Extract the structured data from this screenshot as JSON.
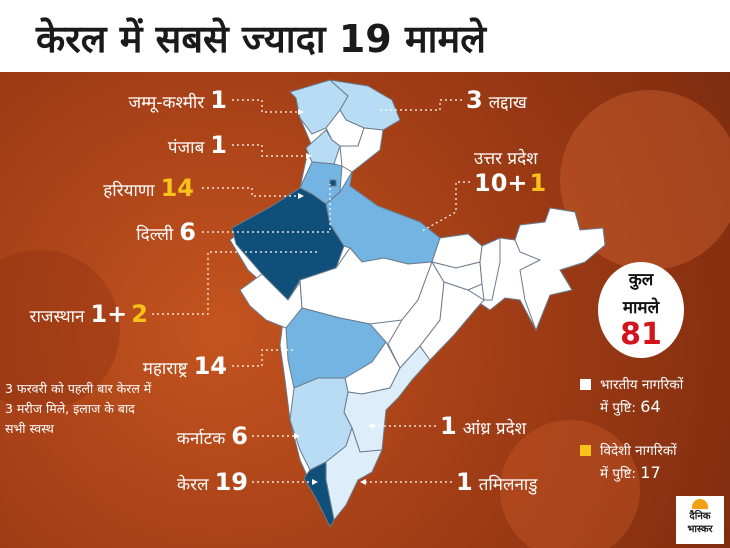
{
  "title": "केरल में सबसे ज्यादा 19 मामले",
  "states": [
    {
      "key": "jammu",
      "name": "जम्मू-कश्मीर",
      "value": "1"
    },
    {
      "key": "punjab",
      "name": "पंजाब",
      "value": "1"
    },
    {
      "key": "haryana",
      "name": "हरियाणा",
      "value": "14"
    },
    {
      "key": "delhi",
      "name": "दिल्ली",
      "value": "6"
    },
    {
      "key": "rajasthan",
      "name": "राजस्थान",
      "value_indian": "1+",
      "value_foreign": "2"
    },
    {
      "key": "maharashtra",
      "name": "महाराष्ट्र",
      "value": "14"
    },
    {
      "key": "karnataka",
      "name": "कर्नाटक",
      "value": "6"
    },
    {
      "key": "kerala",
      "name": "केरल",
      "value": "19"
    },
    {
      "key": "ladakh",
      "name": "लद्दाख",
      "value": "3"
    },
    {
      "key": "up",
      "name": "उत्तर प्रदेश",
      "value_indian": "10+",
      "value_foreign": "1"
    },
    {
      "key": "andhra",
      "name": "आंध्र प्रदेश",
      "value": "1"
    },
    {
      "key": "tamilnadu",
      "name": "तमिलनाडु",
      "value": "1"
    }
  ],
  "total": {
    "label_line1": "कुल",
    "label_line2": "मामले",
    "value": "81"
  },
  "note": "3 फरवरी को पहली बार केरल में 3 मरीज मिले, इलाज के बाद सभी स्वस्थ",
  "legend": [
    {
      "line1": "भारतीय नागरिकों",
      "line2": "में पुष्टि:",
      "value": "64",
      "color": "#ffffff"
    },
    {
      "line1": "विदेशी नागरिकों",
      "line2": "में पुष्टि:",
      "value": "17",
      "color": "#f7c31a"
    }
  ],
  "logo": {
    "line1": "दैनिक",
    "line2": "भास्कर"
  },
  "colors": {
    "dark_blue": "#0f4f7a",
    "mid_blue": "#74b4e3",
    "light_blue": "#b8dcf4",
    "pale_blue": "#ddeefa",
    "white": "#ffffff",
    "gold": "#f7c31a",
    "red": "#d4141c"
  }
}
